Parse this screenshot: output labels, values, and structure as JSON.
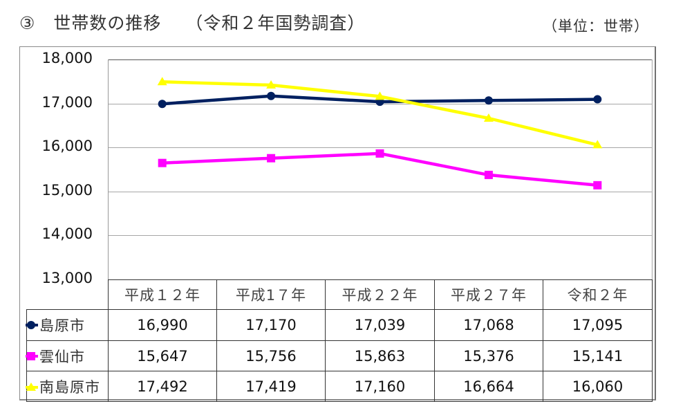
{
  "header": {
    "title": "③　世帯数の推移　 （令和２年国勢調査）",
    "unit": "（単位：世帯）"
  },
  "chart_data": {
    "type": "line",
    "title": "世帯数の推移（令和２年国勢調査）",
    "unit_label": "（単位：世帯）",
    "xlabel": "",
    "ylabel": "",
    "categories": [
      "平成１２年",
      "平成1７年",
      "平成２２年",
      "平成２７年",
      "令和２年"
    ],
    "ylim": [
      13000,
      18000
    ],
    "yticks": [
      "18,000",
      "17,000",
      "16,000",
      "15,000",
      "14,000",
      "13,000"
    ],
    "grid": true,
    "legend_position": "data-table",
    "series": [
      {
        "name": "島原市",
        "color": "#002060",
        "marker": "circle",
        "values": [
          16990,
          17170,
          17039,
          17068,
          17095
        ],
        "labels": [
          "16,990",
          "17,170",
          "17,039",
          "17,068",
          "17,095"
        ]
      },
      {
        "name": "雲仙市",
        "color": "#FF00FF",
        "marker": "square",
        "values": [
          15647,
          15756,
          15863,
          15376,
          15141
        ],
        "labels": [
          "15,647",
          "15,756",
          "15,863",
          "15,376",
          "15,141"
        ]
      },
      {
        "name": "南島原市",
        "color": "#FFFF00",
        "marker": "triangle",
        "values": [
          17492,
          17419,
          17160,
          16664,
          16060
        ],
        "labels": [
          "17,492",
          "17,419",
          "17,160",
          "16,664",
          "16,060"
        ]
      }
    ]
  }
}
